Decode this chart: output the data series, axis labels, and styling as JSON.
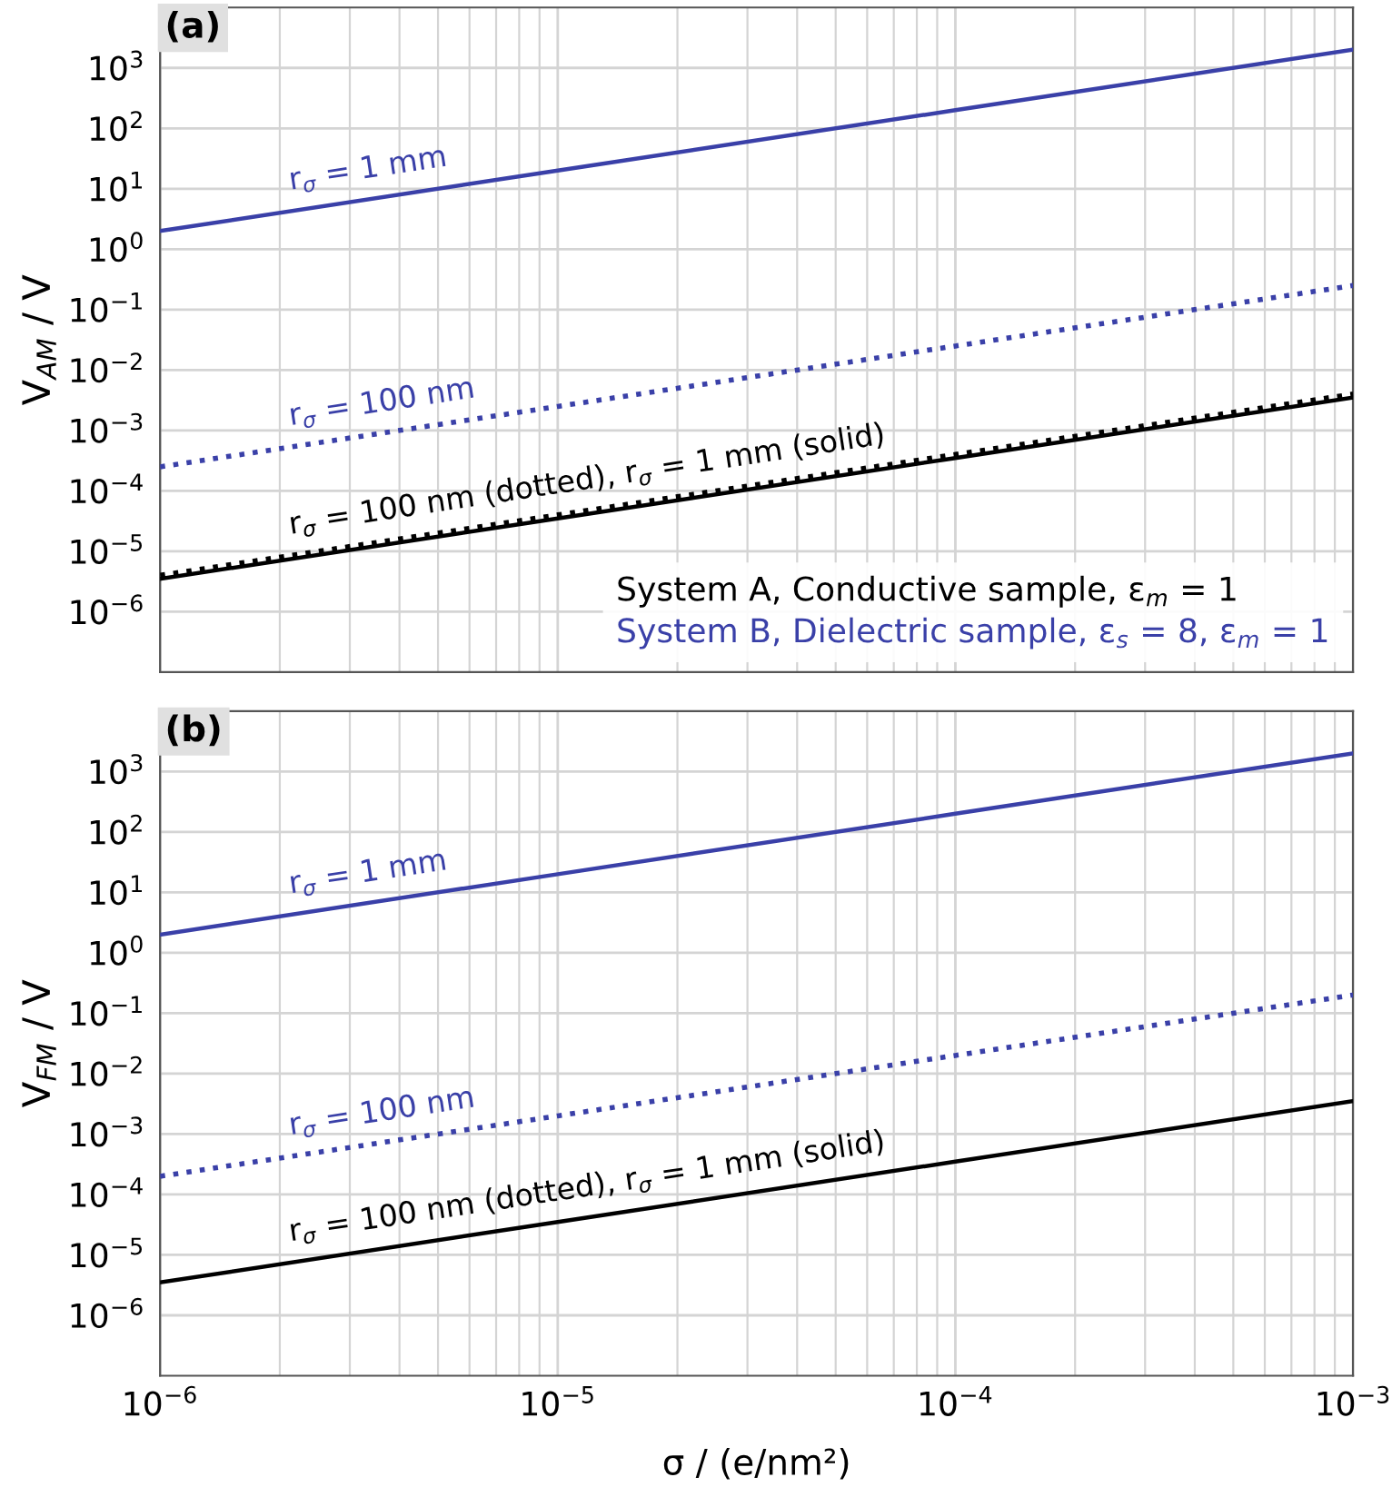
{
  "chart_data": [
    {
      "type": "line",
      "title": "(a)",
      "ylabel": "V$_{AM}$ / V",
      "log": "xy",
      "grid": true,
      "legend": "bottom right",
      "tick_labels": "y",
      "xlim": [
        1e-06,
        0.001
      ],
      "xticks": [
        {
          "value": 1e-06,
          "label": null
        },
        {
          "value": 1e-05,
          "label": null
        },
        {
          "value": 0.0001,
          "label": null
        },
        {
          "value": 0.001,
          "label": null
        }
      ],
      "ylim": [
        1e-07,
        10000.0
      ],
      "yticks": [
        {
          "value": 1e-06,
          "label": "10$^{−6}$"
        },
        {
          "value": 1e-05,
          "label": "10$^{−5}$"
        },
        {
          "value": 0.0001,
          "label": "10$^{−4}$"
        },
        {
          "value": 0.001,
          "label": "10$^{−3}$"
        },
        {
          "value": 0.01,
          "label": "10$^{−2}$"
        },
        {
          "value": 0.1,
          "label": "10$^{−1}$"
        },
        {
          "value": 1,
          "label": "10$^{0}$"
        },
        {
          "value": 10,
          "label": "10$^{1}$"
        },
        {
          "value": 100,
          "label": "10$^{2}$"
        },
        {
          "value": 1000,
          "label": "10$^{3}$"
        }
      ],
      "x": [
        1e-06,
        1e-05,
        0.0001,
        0.001
      ],
      "series": [
        {
          "name": "System B, Dielectric sample, ε$_{s}$ = 8, ε$_{m}$ = 1",
          "color": "#3a40a8",
          "line_style": "solid",
          "values": [
            2,
            20,
            200,
            2000
          ]
        },
        {
          "color": "#3a40a8",
          "line_style": "dotted",
          "values": [
            0.00025,
            0.0025,
            0.025,
            0.25
          ]
        },
        {
          "color": "#000000",
          "line_style": "dotted",
          "values": [
            4e-06,
            4e-05,
            0.0004,
            0.004
          ]
        },
        {
          "name": "System A, Conductive sample, ε$_{m}$ = 1",
          "color": "#000000",
          "line_style": "solid",
          "values": [
            3.5e-06,
            3.5e-05,
            0.00035,
            0.0035
          ]
        }
      ],
      "annotations": [
        "r$_{σ}$ = 1 mm",
        "r$_{σ}$ = 100 nm",
        "r$_{σ}$ = 100 nm (dotted), r$_{σ}$ = 1 mm (solid)"
      ]
    },
    {
      "type": "line",
      "title": "(b)",
      "xlabel": "σ / (e/nm²)",
      "ylabel": "V$_{FM}$ / V",
      "log": "xy",
      "grid": true,
      "xlim": [
        1e-06,
        0.001
      ],
      "xticks": [
        {
          "value": 1e-06,
          "label": "10$^{−6}$"
        },
        {
          "value": 1e-05,
          "label": "10$^{−5}$"
        },
        {
          "value": 0.0001,
          "label": "10$^{−4}$"
        },
        {
          "value": 0.001,
          "label": "10$^{−3}$"
        }
      ],
      "ylim": [
        1e-07,
        10000.0
      ],
      "yticks": [
        {
          "value": 1e-06,
          "label": "10$^{−6}$"
        },
        {
          "value": 1e-05,
          "label": "10$^{−5}$"
        },
        {
          "value": 0.0001,
          "label": "10$^{−4}$"
        },
        {
          "value": 0.001,
          "label": "10$^{−3}$"
        },
        {
          "value": 0.01,
          "label": "10$^{−2}$"
        },
        {
          "value": 0.1,
          "label": "10$^{−1}$"
        },
        {
          "value": 1,
          "label": "10$^{0}$"
        },
        {
          "value": 10,
          "label": "10$^{1}$"
        },
        {
          "value": 100,
          "label": "10$^{2}$"
        },
        {
          "value": 1000,
          "label": "10$^{3}$"
        }
      ],
      "x": [
        1e-06,
        1e-05,
        0.0001,
        0.001
      ],
      "series": [
        {
          "color": "#3a40a8",
          "line_style": "solid",
          "values": [
            2,
            20,
            200,
            2000
          ]
        },
        {
          "color": "#3a40a8",
          "line_style": "dotted",
          "values": [
            0.0002,
            0.002,
            0.02,
            0.2
          ]
        },
        {
          "color": "#000000",
          "line_style": "solid",
          "values": [
            3.5e-06,
            3.5e-05,
            0.00035,
            0.0035
          ]
        }
      ],
      "annotations": [
        "r$_{σ}$ = 1 mm",
        "r$_{σ}$ = 100 nm",
        "r$_{σ}$ = 100 nm (dotted), r$_{σ}$ = 1 mm (solid)"
      ]
    }
  ]
}
